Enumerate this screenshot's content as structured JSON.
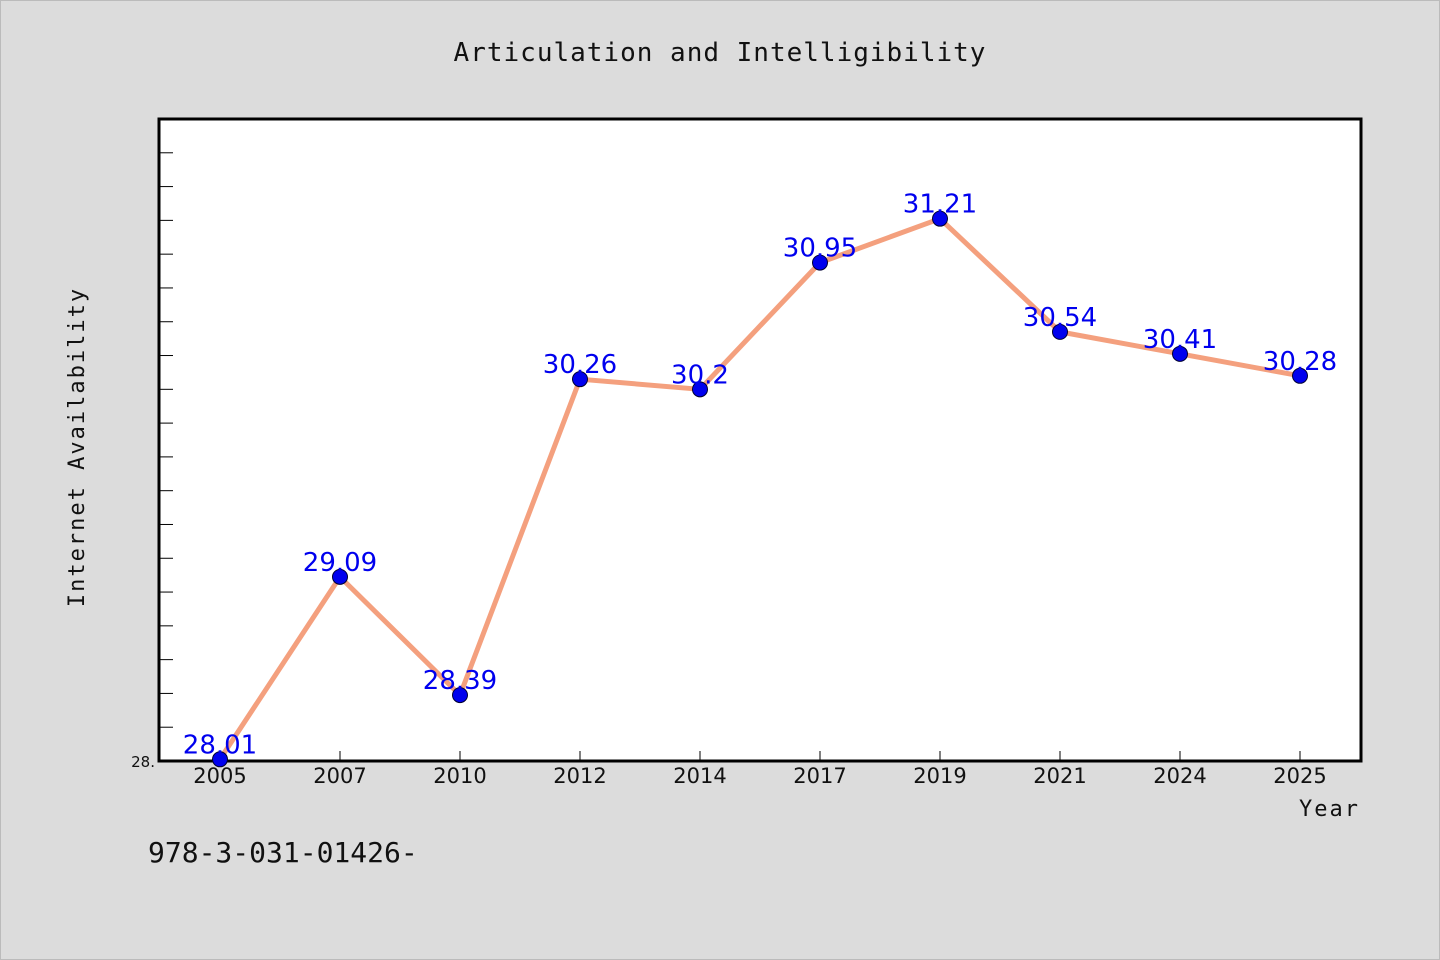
{
  "chart_data": {
    "type": "line",
    "title": "Articulation and Intelligibility",
    "xlabel": "Year",
    "ylabel": "Internet Availability",
    "categories": [
      "2005",
      "2007",
      "2010",
      "2012",
      "2014",
      "2017",
      "2019",
      "2021",
      "2024",
      "2025"
    ],
    "series": [
      {
        "values": [
          28.01,
          29.09,
          28.39,
          30.26,
          30.2,
          30.95,
          31.21,
          30.54,
          30.41,
          30.28
        ],
        "data_labels": [
          "28.01",
          "29.09",
          "28.39",
          "30.26",
          "30.2",
          "30.95",
          "31.21",
          "30.54",
          "30.41",
          "30.28"
        ]
      }
    ],
    "ylim": [
      28.0,
      31.8
    ],
    "y_tick_labels": [
      "28."
    ],
    "grid": false,
    "legend": "none",
    "colors": {
      "line": "#f4a07e",
      "marker": "#0000ee",
      "data_label": "#0000ee",
      "plot_background": "#ffffff",
      "figure_background": "#dcdcdc"
    }
  },
  "footer_text": "978-3-031-01426-"
}
